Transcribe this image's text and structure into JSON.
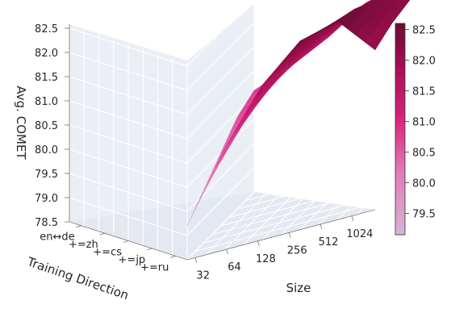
{
  "chart_data": {
    "type": "surface",
    "title": "",
    "xlabel": "Size",
    "ylabel": "Training Direction",
    "zlabel": "Avg. COMET",
    "x_ticks": [
      "32",
      "64",
      "128",
      "256",
      "512",
      "1024"
    ],
    "y_ticks": [
      "en↔de",
      "+=zh",
      "+=cs",
      "+=jp",
      "+=ru"
    ],
    "z_ticks": [
      "78.5",
      "79.0",
      "79.5",
      "80.0",
      "80.5",
      "81.0",
      "81.5",
      "82.0",
      "82.5"
    ],
    "zlim": [
      78.5,
      82.8
    ],
    "colorbar": {
      "ticks": [
        "79.5",
        "80.0",
        "80.5",
        "81.0",
        "81.5",
        "82.0",
        "82.5"
      ],
      "range": [
        79.15,
        82.6
      ],
      "colors": [
        "#d6b4d4",
        "#e27ab8",
        "#d8237c",
        "#a50e52",
        "#6b0b33"
      ]
    },
    "x": [
      32,
      64,
      128,
      256,
      512,
      1024
    ],
    "y": [
      "en↔de",
      "+=zh",
      "+=cs",
      "+=jp",
      "+=ru"
    ],
    "z": [
      [
        79.2,
        80.6,
        81.7,
        82.4,
        82.6,
        81.8
      ],
      [
        79.6,
        80.7,
        81.6,
        82.2,
        82.5,
        82.0
      ],
      [
        80.0,
        80.9,
        81.5,
        82.0,
        82.3,
        82.1
      ],
      [
        80.4,
        81.0,
        81.4,
        81.9,
        82.2,
        82.2
      ],
      [
        80.6,
        80.9,
        81.3,
        81.8,
        82.0,
        82.3
      ]
    ]
  }
}
